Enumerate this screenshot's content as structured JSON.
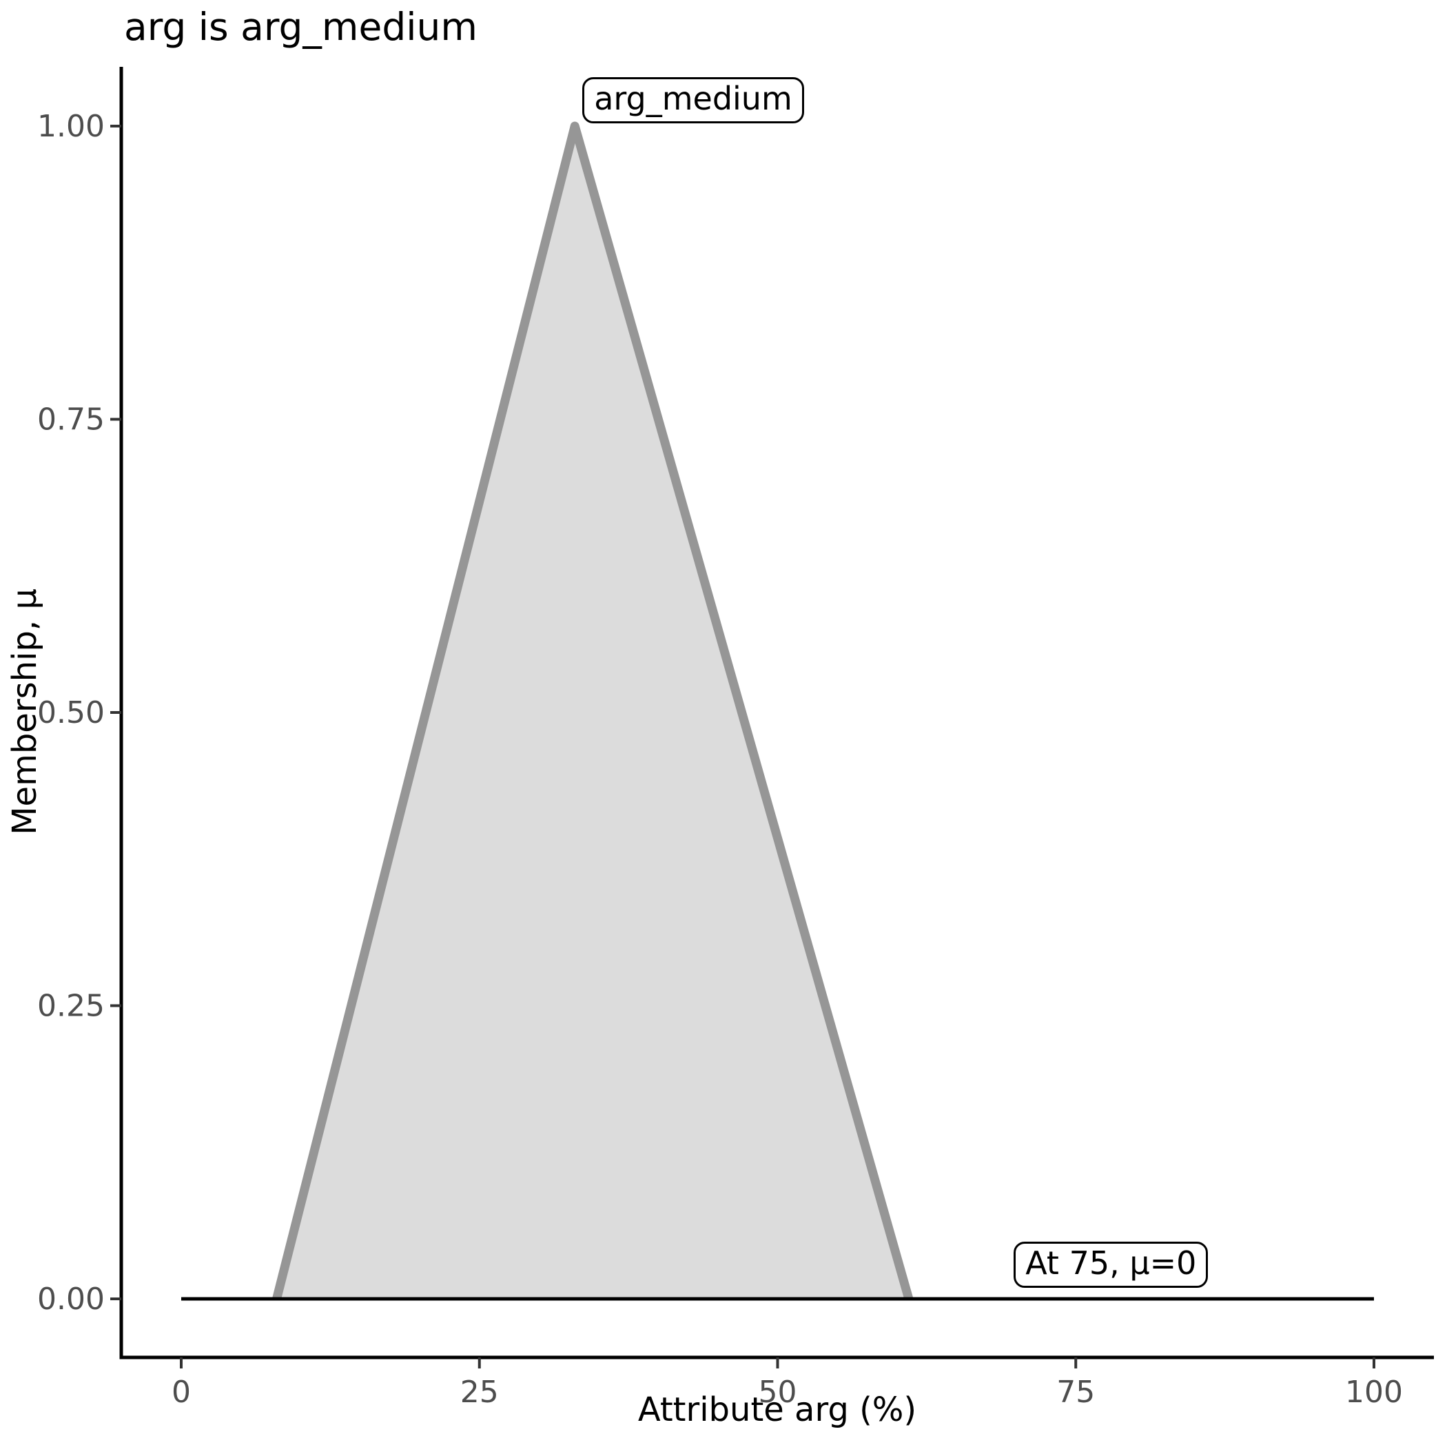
{
  "chart_data": {
    "type": "area",
    "title": "arg is arg_medium",
    "xlabel": "Attribute arg (%)",
    "ylabel": "Membership, μ",
    "xlim": [
      0,
      100
    ],
    "ylim": [
      0,
      1
    ],
    "grid": false,
    "legend": false,
    "x_ticks": [
      {
        "value": 0,
        "label": "0"
      },
      {
        "value": 25,
        "label": "25"
      },
      {
        "value": 50,
        "label": "50"
      },
      {
        "value": 75,
        "label": "75"
      },
      {
        "value": 100,
        "label": "100"
      }
    ],
    "y_ticks": [
      {
        "value": 0,
        "label": "0.00"
      },
      {
        "value": 0.25,
        "label": "0.25"
      },
      {
        "value": 0.5,
        "label": "0.50"
      },
      {
        "value": 0.75,
        "label": "0.75"
      },
      {
        "value": 1,
        "label": "1.00"
      }
    ],
    "series": [
      {
        "name": "arg_medium",
        "shape": "triangular-membership-function",
        "points": [
          [
            8,
            0
          ],
          [
            33,
            1
          ],
          [
            61,
            0
          ]
        ],
        "fill": "#DCDCDC",
        "stroke": "#969696"
      }
    ],
    "baseline": {
      "y": 0,
      "x_from": 0,
      "x_to": 100,
      "color": "#000000"
    },
    "annotations": [
      {
        "text": "arg_medium",
        "x": 33,
        "y": 1
      },
      {
        "text": "At 75, μ=0",
        "x": 75,
        "y": 0
      }
    ],
    "colors": {
      "background": "#FFFFFF",
      "axis_line": "#000000",
      "tick_mark": "#333333",
      "tick_label": "#4D4D4D",
      "title_text": "#000000",
      "annotation_border": "#000000",
      "annotation_background": "#FFFFFF"
    }
  }
}
